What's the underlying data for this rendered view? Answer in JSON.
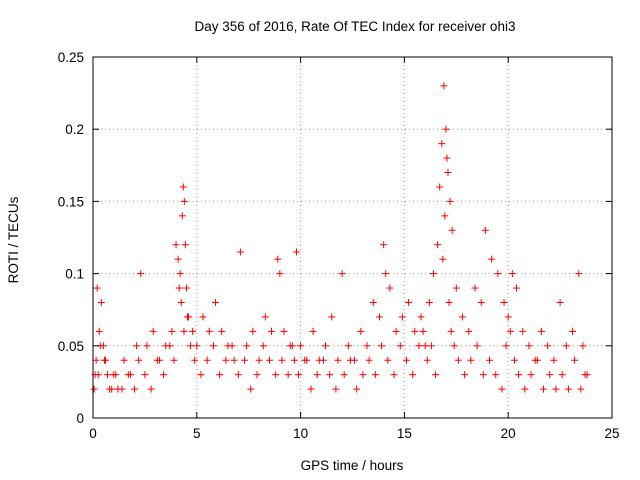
{
  "chart_data": {
    "type": "scatter",
    "title": "Day 356 of 2016, Rate Of TEC Index for receiver ohi3",
    "xlabel": "GPS time / hours",
    "ylabel": "ROTI / TECUs",
    "xlim": [
      0,
      25
    ],
    "ylim": [
      0,
      0.25
    ],
    "x_ticks": [
      0,
      5,
      10,
      15,
      20,
      25
    ],
    "x_tick_labels": [
      "0",
      "5",
      "10",
      "15",
      "20",
      "25"
    ],
    "y_ticks": [
      0,
      0.05,
      0.1,
      0.15,
      0.2,
      0.25
    ],
    "y_tick_labels": [
      "0",
      "0.05",
      "0.1",
      "0.15",
      "0.2",
      "0.25"
    ],
    "grid": true,
    "marker": "+",
    "color": "#ff0000",
    "series": [
      {
        "x": [
          0.1,
          0.2,
          0.3,
          0.4,
          0.5,
          0.6,
          0.8,
          1.0,
          1.2,
          1.5,
          1.8,
          2.1,
          2.3,
          2.6,
          2.9,
          3.2,
          3.5,
          3.8,
          4.0,
          4.1,
          4.2,
          4.3,
          4.35,
          4.4,
          4.45,
          4.5,
          4.6,
          4.8,
          5.0,
          5.3,
          5.6,
          5.9,
          6.2,
          6.5,
          6.8,
          7.1,
          7.4,
          7.7,
          8.0,
          8.3,
          8.6,
          8.9,
          9.0,
          9.2,
          9.5,
          9.7,
          9.8,
          10.0,
          10.3,
          10.6,
          10.9,
          11.2,
          11.5,
          11.8,
          12.0,
          12.3,
          12.6,
          12.9,
          13.2,
          13.5,
          13.8,
          14.0,
          14.1,
          14.3,
          14.6,
          14.9,
          15.2,
          15.5,
          15.8,
          16.0,
          16.2,
          16.4,
          16.6,
          16.7,
          16.8,
          16.9,
          17.0,
          17.05,
          17.1,
          17.2,
          17.3,
          17.5,
          17.8,
          18.1,
          18.4,
          18.7,
          18.9,
          19.2,
          19.5,
          19.8,
          20.0,
          20.2,
          20.4,
          20.7,
          21.0,
          21.3,
          21.6,
          21.9,
          22.2,
          22.5,
          22.8,
          23.1,
          23.4,
          23.6,
          23.8,
          0.05,
          0.15,
          0.25,
          0.35,
          0.55,
          0.7,
          0.9,
          1.1,
          1.4,
          1.7,
          2.0,
          2.2,
          2.5,
          2.8,
          3.1,
          3.4,
          3.7,
          3.9,
          4.15,
          4.25,
          4.38,
          4.55,
          4.7,
          4.9,
          5.2,
          5.5,
          5.8,
          6.1,
          6.4,
          6.7,
          7.0,
          7.3,
          7.6,
          7.9,
          8.2,
          8.5,
          8.8,
          9.1,
          9.4,
          9.6,
          9.9,
          10.2,
          10.5,
          10.8,
          11.1,
          11.4,
          11.7,
          12.1,
          12.4,
          12.7,
          13.0,
          13.3,
          13.6,
          13.9,
          14.2,
          14.5,
          14.8,
          15.1,
          15.4,
          15.7,
          15.9,
          16.1,
          16.3,
          16.5,
          16.85,
          16.95,
          17.15,
          17.25,
          17.4,
          17.6,
          17.9,
          18.2,
          18.5,
          18.8,
          19.1,
          19.4,
          19.7,
          19.9,
          20.1,
          20.3,
          20.5,
          20.8,
          21.1,
          21.4,
          21.7,
          22.0,
          22.3,
          22.6,
          22.9,
          23.2,
          23.5,
          23.7
        ],
        "y": [
          0.03,
          0.09,
          0.06,
          0.08,
          0.05,
          0.04,
          0.02,
          0.03,
          0.02,
          0.04,
          0.03,
          0.05,
          0.1,
          0.05,
          0.06,
          0.04,
          0.05,
          0.06,
          0.12,
          0.11,
          0.1,
          0.14,
          0.16,
          0.15,
          0.12,
          0.09,
          0.07,
          0.06,
          0.05,
          0.07,
          0.06,
          0.08,
          0.06,
          0.05,
          0.04,
          0.115,
          0.05,
          0.06,
          0.04,
          0.07,
          0.06,
          0.11,
          0.1,
          0.06,
          0.05,
          0.04,
          0.115,
          0.05,
          0.04,
          0.06,
          0.04,
          0.05,
          0.07,
          0.04,
          0.1,
          0.05,
          0.04,
          0.06,
          0.05,
          0.08,
          0.07,
          0.12,
          0.1,
          0.09,
          0.06,
          0.07,
          0.08,
          0.06,
          0.07,
          0.05,
          0.08,
          0.1,
          0.12,
          0.16,
          0.19,
          0.23,
          0.2,
          0.18,
          0.17,
          0.15,
          0.13,
          0.09,
          0.07,
          0.06,
          0.09,
          0.08,
          0.13,
          0.11,
          0.1,
          0.08,
          0.07,
          0.1,
          0.09,
          0.06,
          0.05,
          0.04,
          0.06,
          0.05,
          0.04,
          0.08,
          0.05,
          0.06,
          0.1,
          0.05,
          0.03,
          0.02,
          0.04,
          0.03,
          0.05,
          0.04,
          0.03,
          0.02,
          0.03,
          0.02,
          0.03,
          0.02,
          0.04,
          0.03,
          0.02,
          0.04,
          0.03,
          0.05,
          0.04,
          0.09,
          0.08,
          0.06,
          0.07,
          0.05,
          0.04,
          0.03,
          0.04,
          0.05,
          0.03,
          0.04,
          0.05,
          0.03,
          0.04,
          0.02,
          0.03,
          0.05,
          0.04,
          0.03,
          0.04,
          0.03,
          0.05,
          0.03,
          0.04,
          0.02,
          0.03,
          0.04,
          0.03,
          0.02,
          0.03,
          0.04,
          0.02,
          0.03,
          0.04,
          0.03,
          0.05,
          0.04,
          0.03,
          0.05,
          0.04,
          0.03,
          0.05,
          0.06,
          0.04,
          0.05,
          0.03,
          0.11,
          0.14,
          0.08,
          0.06,
          0.05,
          0.04,
          0.03,
          0.04,
          0.05,
          0.03,
          0.04,
          0.03,
          0.02,
          0.05,
          0.06,
          0.04,
          0.03,
          0.02,
          0.03,
          0.04,
          0.02,
          0.03,
          0.02,
          0.03,
          0.02,
          0.04,
          0.02,
          0.03
        ]
      }
    ]
  }
}
